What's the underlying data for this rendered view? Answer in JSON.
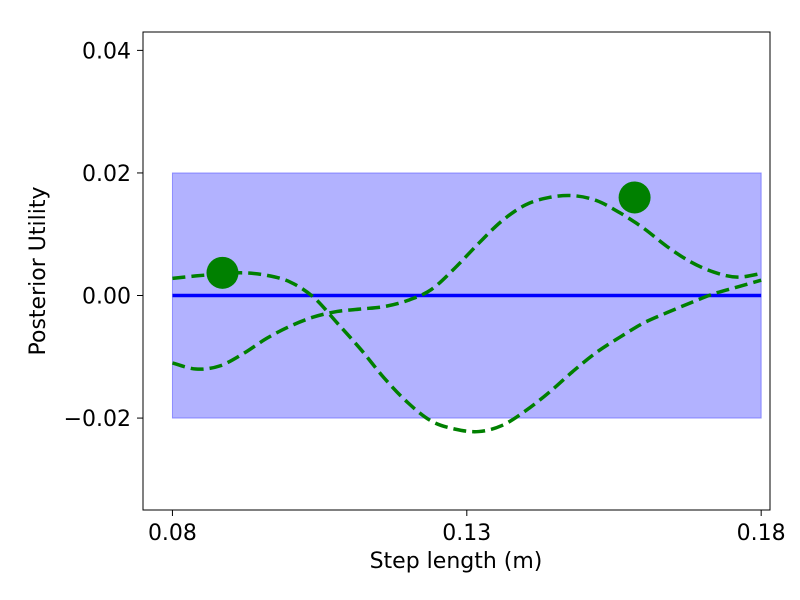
{
  "chart_data": {
    "type": "line",
    "title": "",
    "xlabel": "Step length (m)",
    "ylabel": "Posterior Utility",
    "xlim": [
      0.075,
      0.1815
    ],
    "ylim": [
      -0.035,
      0.043
    ],
    "xticks": [
      0.08,
      0.13,
      0.18
    ],
    "xtick_labels": [
      "0.08",
      "0.13",
      "0.18"
    ],
    "yticks": [
      -0.02,
      0.0,
      0.02,
      0.04
    ],
    "ytick_labels": [
      "−0.02",
      "0.00",
      "0.02",
      "0.04"
    ],
    "grid": false,
    "legend": null,
    "band": {
      "x": [
        0.08,
        0.18
      ],
      "y": [
        -0.02,
        0.02
      ],
      "color": "#0000ff",
      "opacity": 0.3
    },
    "mean_line": {
      "x": [
        0.08,
        0.18
      ],
      "y": [
        0.0,
        0.0
      ],
      "color": "#0000ff",
      "style": "solid"
    },
    "series": [
      {
        "color": "#008000",
        "style": "dashed",
        "x": [
          0.08,
          0.084,
          0.088,
          0.092,
          0.096,
          0.1,
          0.104,
          0.108,
          0.112,
          0.116,
          0.12,
          0.124,
          0.128,
          0.132,
          0.136,
          0.14,
          0.144,
          0.148,
          0.152,
          0.156,
          0.16,
          0.164,
          0.168,
          0.172,
          0.176,
          0.18
        ],
        "y": [
          0.0028,
          0.0032,
          0.0035,
          0.0037,
          0.0033,
          0.0022,
          -0.0003,
          -0.0045,
          -0.0088,
          -0.0135,
          -0.0175,
          -0.0205,
          -0.0218,
          -0.0222,
          -0.0212,
          -0.0188,
          -0.0158,
          -0.0124,
          -0.0093,
          -0.0068,
          -0.0045,
          -0.0028,
          -0.0012,
          0.0003,
          0.0014,
          0.0025
        ]
      },
      {
        "color": "#008000",
        "style": "dashed",
        "x": [
          0.08,
          0.084,
          0.088,
          0.092,
          0.096,
          0.1,
          0.104,
          0.108,
          0.112,
          0.116,
          0.12,
          0.124,
          0.128,
          0.132,
          0.136,
          0.14,
          0.144,
          0.148,
          0.152,
          0.156,
          0.16,
          0.164,
          0.168,
          0.172,
          0.176,
          0.18
        ],
        "y": [
          -0.011,
          -0.012,
          -0.0115,
          -0.0095,
          -0.007,
          -0.005,
          -0.0035,
          -0.0026,
          -0.0022,
          -0.0018,
          -0.0008,
          0.001,
          0.0045,
          0.0085,
          0.0122,
          0.0148,
          0.016,
          0.0163,
          0.0155,
          0.0135,
          0.011,
          0.008,
          0.0055,
          0.0038,
          0.003,
          0.0036
        ]
      }
    ],
    "markers": [
      {
        "x": 0.0885,
        "y": 0.0037,
        "color": "#008000"
      },
      {
        "x": 0.1585,
        "y": 0.016,
        "color": "#008000"
      }
    ]
  }
}
